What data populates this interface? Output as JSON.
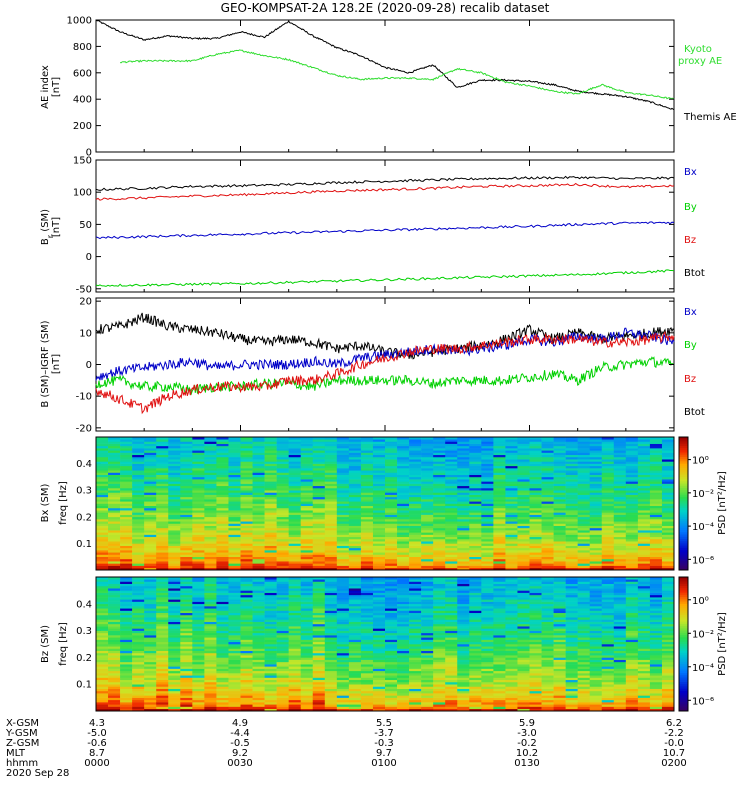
{
  "title": "GEO-KOMPSAT-2A 128.2E (2020-09-28) recalib dataset",
  "colors": {
    "black": "#000000",
    "red": "#e01010",
    "green": "#00d000",
    "blue": "#0000c8",
    "kyoto": "#30dd30"
  },
  "chart_data": [
    {
      "type": "line",
      "ylabel": [
        "AE index",
        "[nT]"
      ],
      "ylim": [
        0,
        1000
      ],
      "yticks": [
        "0",
        "200",
        "400",
        "600",
        "800",
        "1000"
      ],
      "legend": [
        {
          "label": "Kyoto proxy AE",
          "color": "#30dd30"
        },
        {
          "label": "Themis AE",
          "color": "#000000"
        }
      ],
      "x": [
        0,
        5,
        10,
        15,
        20,
        25,
        30,
        35,
        40,
        45,
        50,
        55,
        60,
        65,
        70,
        75,
        80,
        85,
        90,
        95,
        100,
        105,
        110,
        115,
        120
      ],
      "series": [
        {
          "name": "Themis AE",
          "color": "#000000",
          "values": [
            1000,
            910,
            850,
            880,
            860,
            860,
            910,
            870,
            990,
            880,
            790,
            730,
            640,
            600,
            660,
            490,
            545,
            545,
            535,
            510,
            460,
            440,
            420,
            380,
            320
          ]
        },
        {
          "name": "Kyoto proxy AE",
          "color": "#30dd30",
          "values": [
            null,
            680,
            690,
            690,
            690,
            740,
            770,
            730,
            700,
            640,
            580,
            550,
            560,
            560,
            550,
            630,
            600,
            530,
            500,
            460,
            440,
            510,
            450,
            430,
            400
          ]
        }
      ]
    },
    {
      "type": "line",
      "ylabel": [
        "B",
        "r",
        " (SM)",
        "[nT]"
      ],
      "ylim": [
        -55,
        150
      ],
      "yticks": [
        "-50",
        "0",
        "50",
        "100",
        "150"
      ],
      "legend": [
        {
          "label": "Bx",
          "color": "#0000c8"
        },
        {
          "label": "By",
          "color": "#00d000"
        },
        {
          "label": "Bz",
          "color": "#e01010"
        },
        {
          "label": "Btot",
          "color": "#000000"
        }
      ],
      "x": [
        0,
        10,
        20,
        30,
        40,
        50,
        60,
        70,
        80,
        90,
        100,
        110,
        120
      ],
      "series": [
        {
          "name": "Btot",
          "color": "#000000",
          "values": [
            104,
            106,
            109,
            110,
            112,
            115,
            117,
            119,
            121,
            122,
            123,
            121,
            122
          ]
        },
        {
          "name": "Bz",
          "color": "#e01010",
          "values": [
            89,
            91,
            94,
            96,
            99,
            102,
            104,
            106,
            109,
            110,
            112,
            108,
            110
          ]
        },
        {
          "name": "Bx",
          "color": "#0000c8",
          "values": [
            29,
            31,
            33,
            35,
            37,
            39,
            41,
            43,
            45,
            47,
            50,
            52,
            53
          ]
        },
        {
          "name": "By",
          "color": "#00d000",
          "values": [
            -45,
            -44,
            -43,
            -42,
            -40,
            -38,
            -36,
            -34,
            -32,
            -30,
            -28,
            -25,
            -22
          ]
        }
      ]
    },
    {
      "type": "line",
      "ylabel": [
        "B (SM)–IGRF (SM)",
        "[nT]"
      ],
      "ylim": [
        -21,
        21
      ],
      "yticks": [
        "-20",
        "-10",
        "0",
        "10",
        "20"
      ],
      "legend": [
        {
          "label": "Bx",
          "color": "#0000c8"
        },
        {
          "label": "By",
          "color": "#00d000"
        },
        {
          "label": "Bz",
          "color": "#e01010"
        },
        {
          "label": "Btot",
          "color": "#000000"
        }
      ],
      "x": [
        0,
        5,
        10,
        15,
        20,
        25,
        30,
        35,
        40,
        45,
        50,
        55,
        60,
        65,
        70,
        75,
        80,
        85,
        90,
        95,
        100,
        105,
        110,
        115,
        120
      ],
      "series": [
        {
          "name": "Btot",
          "color": "#000000",
          "values": [
            11,
            12,
            15,
            12,
            11,
            10,
            8,
            7,
            8,
            7,
            5,
            6,
            4,
            3,
            4,
            5,
            6,
            8,
            11,
            8,
            10,
            8,
            9,
            10,
            11
          ]
        },
        {
          "name": "Bx",
          "color": "#0000c8",
          "values": [
            -4,
            -2,
            -1,
            0,
            1,
            -1,
            0,
            0,
            0,
            1,
            0,
            2,
            3,
            4,
            5,
            4,
            5,
            6,
            8,
            7,
            9,
            8,
            10,
            9,
            7
          ]
        },
        {
          "name": "By",
          "color": "#00d000",
          "values": [
            -6,
            -5,
            -7,
            -7,
            -8,
            -7,
            -7,
            -6,
            -6,
            -7,
            -5,
            -5,
            -5,
            -5,
            -6,
            -5,
            -5,
            -5,
            -4,
            -3,
            -5,
            -1,
            0,
            1,
            0
          ]
        },
        {
          "name": "Bz",
          "color": "#e01010",
          "values": [
            -8,
            -11,
            -14,
            -10,
            -8,
            -7,
            -7,
            -7,
            -5,
            -5,
            -3,
            0,
            2,
            4,
            5,
            5,
            6,
            7,
            8,
            8,
            8,
            7,
            7,
            8,
            9
          ]
        }
      ]
    },
    {
      "type": "heatmap",
      "ylabel": [
        "Bx (SM)",
        "freq [Hz]"
      ],
      "ylim": [
        0,
        0.5
      ],
      "yticks": [
        "0.1",
        "0.2",
        "0.3",
        "0.4"
      ],
      "colorbar": {
        "label": "PSD [nT²/Hz]",
        "ticks": [
          "10⁰",
          "10⁻²",
          "10⁻⁴",
          "10⁻⁶"
        ]
      }
    },
    {
      "type": "heatmap",
      "ylabel": [
        "Bz (SM)",
        "freq [Hz]"
      ],
      "ylim": [
        0,
        0.5
      ],
      "yticks": [
        "0.1",
        "0.2",
        "0.3",
        "0.4"
      ],
      "colorbar": {
        "label": "PSD [nT²/Hz]",
        "ticks": [
          "10⁰",
          "10⁻²",
          "10⁻⁴",
          "10⁻⁶"
        ]
      }
    }
  ],
  "ephemeris": {
    "labels": [
      "X-GSM",
      "Y-GSM",
      "Z-GSM",
      "MLT",
      "hhmm",
      "2020 Sep 28"
    ],
    "columns": [
      [
        "4.3",
        "-5.0",
        "-0.6",
        "8.7",
        "0000"
      ],
      [
        "4.9",
        "-4.4",
        "-0.5",
        "9.2",
        "0030"
      ],
      [
        "5.5",
        "-3.7",
        "-0.3",
        "9.7",
        "0100"
      ],
      [
        "5.9",
        "-3.0",
        "-0.2",
        "10.2",
        "0130"
      ],
      [
        "6.2",
        "-2.2",
        "-0.0",
        "10.7",
        "0200"
      ]
    ]
  }
}
